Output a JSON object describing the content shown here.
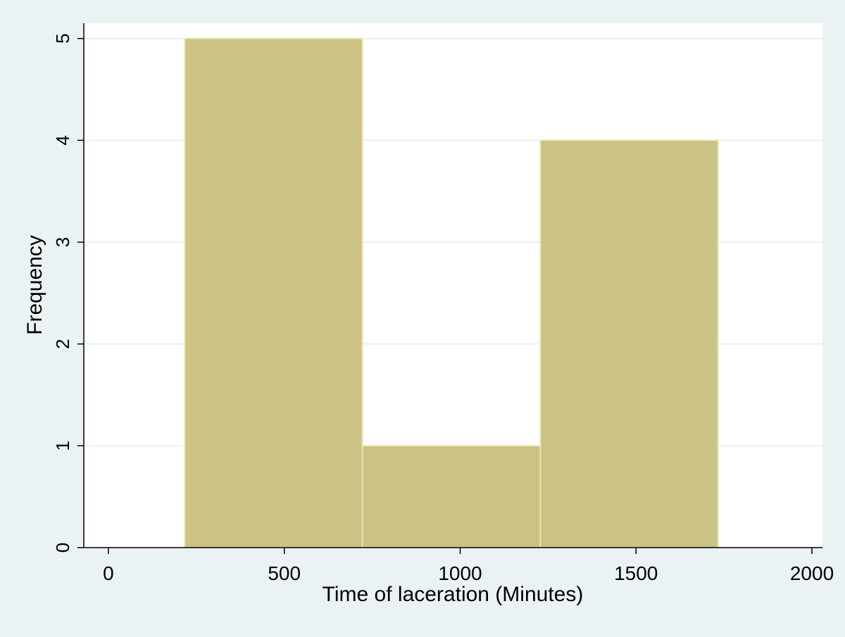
{
  "chart_data": {
    "type": "bar",
    "subtype": "histogram",
    "bins": [
      {
        "x_start": 217,
        "x_end": 722,
        "value": 5
      },
      {
        "x_start": 722,
        "x_end": 1228,
        "value": 1
      },
      {
        "x_start": 1228,
        "x_end": 1733,
        "value": 4
      }
    ],
    "values": [
      5,
      1,
      4
    ],
    "xlabel": "Time of laceration (Minutes)",
    "ylabel": "Frequency",
    "xlim": [
      -70,
      2030
    ],
    "ylim": [
      0,
      5.15
    ],
    "x_ticks": [
      0,
      500,
      1000,
      1500,
      2000
    ],
    "y_ticks": [
      0,
      1,
      2,
      3,
      4,
      5
    ],
    "grid": "horizontal",
    "legend": "none",
    "colors": {
      "bar_fill": "#cbc383",
      "bar_stroke": "#e9e4b4",
      "background": "#eaf2f3",
      "plot_area": "#ffffff",
      "gridline": "#e8f1f2",
      "axis": "#000000"
    }
  }
}
